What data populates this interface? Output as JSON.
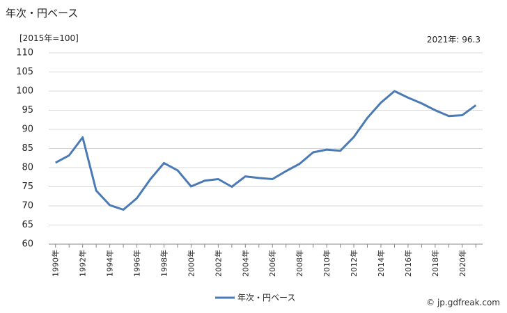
{
  "title": "年次・円ベース",
  "unit_label": "[2015年=100]",
  "latest_label": "2021年: 96.3",
  "credit": "© jp.gdfreak.com",
  "chart_data": {
    "type": "line",
    "x": [
      1990,
      1991,
      1992,
      1993,
      1994,
      1995,
      1996,
      1997,
      1998,
      1999,
      2000,
      2001,
      2002,
      2003,
      2004,
      2005,
      2006,
      2007,
      2008,
      2009,
      2010,
      2011,
      2012,
      2013,
      2014,
      2015,
      2016,
      2017,
      2018,
      2019,
      2020,
      2021
    ],
    "x_tick_labels": [
      "1990年",
      "1992年",
      "1994年",
      "1996年",
      "1998年",
      "2000年",
      "2002年",
      "2004年",
      "2006年",
      "2008年",
      "2010年",
      "2012年",
      "2014年",
      "2016年",
      "2018年",
      "2020年"
    ],
    "series": [
      {
        "name": "年次・円ベース",
        "color": "#4a7ab5",
        "values": [
          81.3,
          83.2,
          87.9,
          74.0,
          70.2,
          69.0,
          72.0,
          77.0,
          81.2,
          79.3,
          75.1,
          76.6,
          77.0,
          75.0,
          77.7,
          77.3,
          77.0,
          79.1,
          81.0,
          84.0,
          84.7,
          84.4,
          88.0,
          93.0,
          97.0,
          100.0,
          98.3,
          96.8,
          95.0,
          93.5,
          93.7,
          96.3
        ]
      }
    ],
    "ylim": [
      60,
      110
    ],
    "y_ticks": [
      60,
      65,
      70,
      75,
      80,
      85,
      90,
      95,
      100,
      105,
      110
    ],
    "grid": "horizontal",
    "legend": "bottom-center",
    "xlabel": "",
    "ylabel": ""
  }
}
